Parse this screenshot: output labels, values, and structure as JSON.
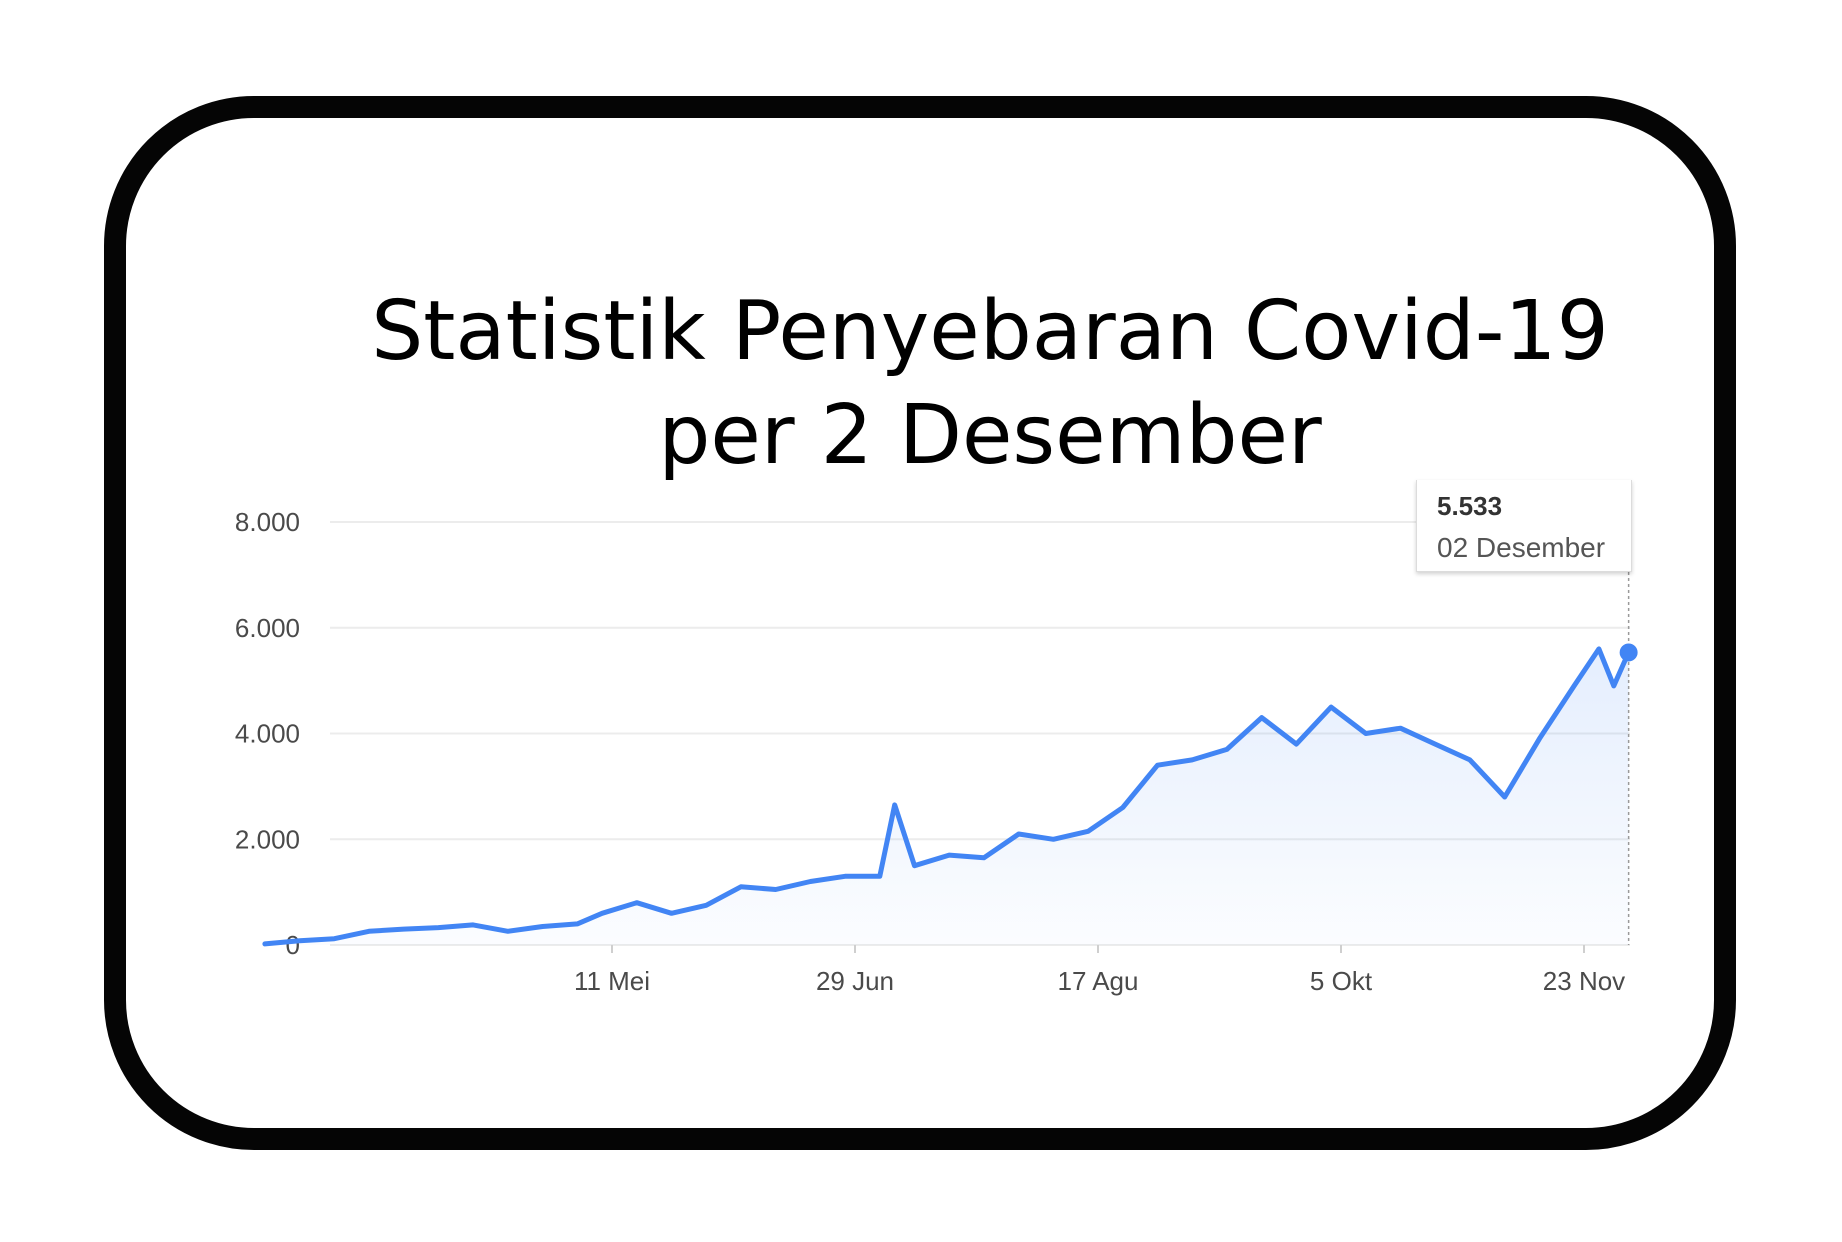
{
  "title_lines": [
    "Statistik Penyebaran Covid-19",
    "per 2 Desember"
  ],
  "tooltip": {
    "value": "5.533",
    "date": "02 Desember"
  },
  "colors": {
    "line": "#4285f4",
    "grid": "#ececec",
    "frame": "#050505"
  },
  "chart_data": {
    "type": "area",
    "title": "Statistik Penyebaran Covid-19 per 2 Desember",
    "xlabel": "",
    "ylabel": "",
    "ylim": [
      0,
      8000
    ],
    "y_ticks": [
      0,
      2000,
      4000,
      6000,
      8000
    ],
    "y_tick_labels": [
      "0",
      "2.000",
      "4.000",
      "6.000",
      "8.000"
    ],
    "x_ticks": [
      "2020-05-11",
      "2020-06-29",
      "2020-08-17",
      "2020-10-05",
      "2020-11-23"
    ],
    "x_tick_labels": [
      "11 Mei",
      "29 Jun",
      "17 Agu",
      "5 Okt",
      "23 Nov"
    ],
    "grid": true,
    "legend": "none",
    "highlight": {
      "x": "2020-12-02",
      "y": 5533
    },
    "series": [
      {
        "x": [
          "2020-03-02",
          "2020-03-09",
          "2020-03-16",
          "2020-03-23",
          "2020-03-30",
          "2020-04-06",
          "2020-04-13",
          "2020-04-20",
          "2020-04-27",
          "2020-05-04",
          "2020-05-09",
          "2020-05-16",
          "2020-05-23",
          "2020-05-30",
          "2020-06-06",
          "2020-06-13",
          "2020-06-20",
          "2020-06-27",
          "2020-07-04",
          "2020-07-07",
          "2020-07-11",
          "2020-07-18",
          "2020-07-25",
          "2020-08-01",
          "2020-08-08",
          "2020-08-15",
          "2020-08-22",
          "2020-08-29",
          "2020-09-05",
          "2020-09-12",
          "2020-09-19",
          "2020-09-26",
          "2020-10-03",
          "2020-10-10",
          "2020-10-17",
          "2020-10-24",
          "2020-10-31",
          "2020-11-07",
          "2020-11-14",
          "2020-11-21",
          "2020-11-26",
          "2020-11-29",
          "2020-12-02"
        ],
        "y": [
          20,
          80,
          120,
          260,
          300,
          330,
          380,
          260,
          350,
          400,
          600,
          800,
          600,
          750,
          1100,
          1050,
          1200,
          1300,
          1300,
          2650,
          1500,
          1700,
          1650,
          2100,
          2000,
          2150,
          2600,
          3400,
          3500,
          3700,
          4300,
          3800,
          4500,
          4000,
          4100,
          3800,
          3500,
          2800,
          3900,
          4900,
          5600,
          4900,
          5533
        ]
      }
    ]
  }
}
